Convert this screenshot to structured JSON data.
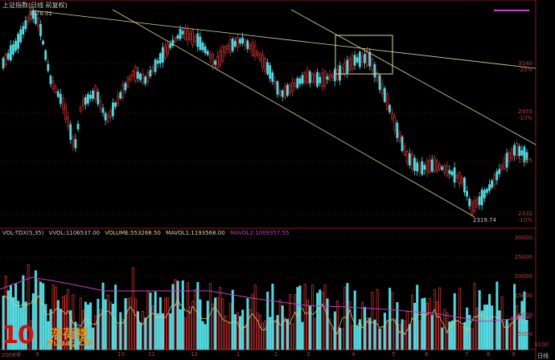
{
  "window": {
    "title": "上证指数(日线 前复权)",
    "period_tab": "日线"
  },
  "price_axis": {
    "labels": [
      "3140",
      "-20%",
      "2955",
      "-10%",
      "2595",
      "2332",
      "-10%"
    ]
  },
  "volume_header": {
    "indicator": "VOL-TDX(5,35)",
    "vvol": "VVOL:1106537.00",
    "volume": "VOLUME:553268.50",
    "mavol1": "MAVOL1:1193568.00",
    "mavol2": "MAVOL2:1009357.55"
  },
  "volume_axis": {
    "labels": [
      "30000",
      "25000",
      "20000",
      "15000",
      "10000",
      "5000"
    ],
    "unit": "X100"
  },
  "x_axis": {
    "labels": [
      "2008年",
      "9",
      "10",
      "11",
      "12",
      "1",
      "2",
      "3",
      "4",
      "5",
      "6",
      "7",
      "8",
      "9"
    ]
  },
  "annotations": {
    "high": "3478.01",
    "low": "2319.74"
  },
  "watermark": {
    "big": "10",
    "cn": "浩荷楼",
    "sub": "Hunag CN"
  },
  "colors": {
    "up": "#c03030",
    "down": "#54d8e0",
    "trend": "#d8d890",
    "mavol1": "#c8c880",
    "mavol2": "#c040c0",
    "axis": "#8b1a1a"
  }
}
